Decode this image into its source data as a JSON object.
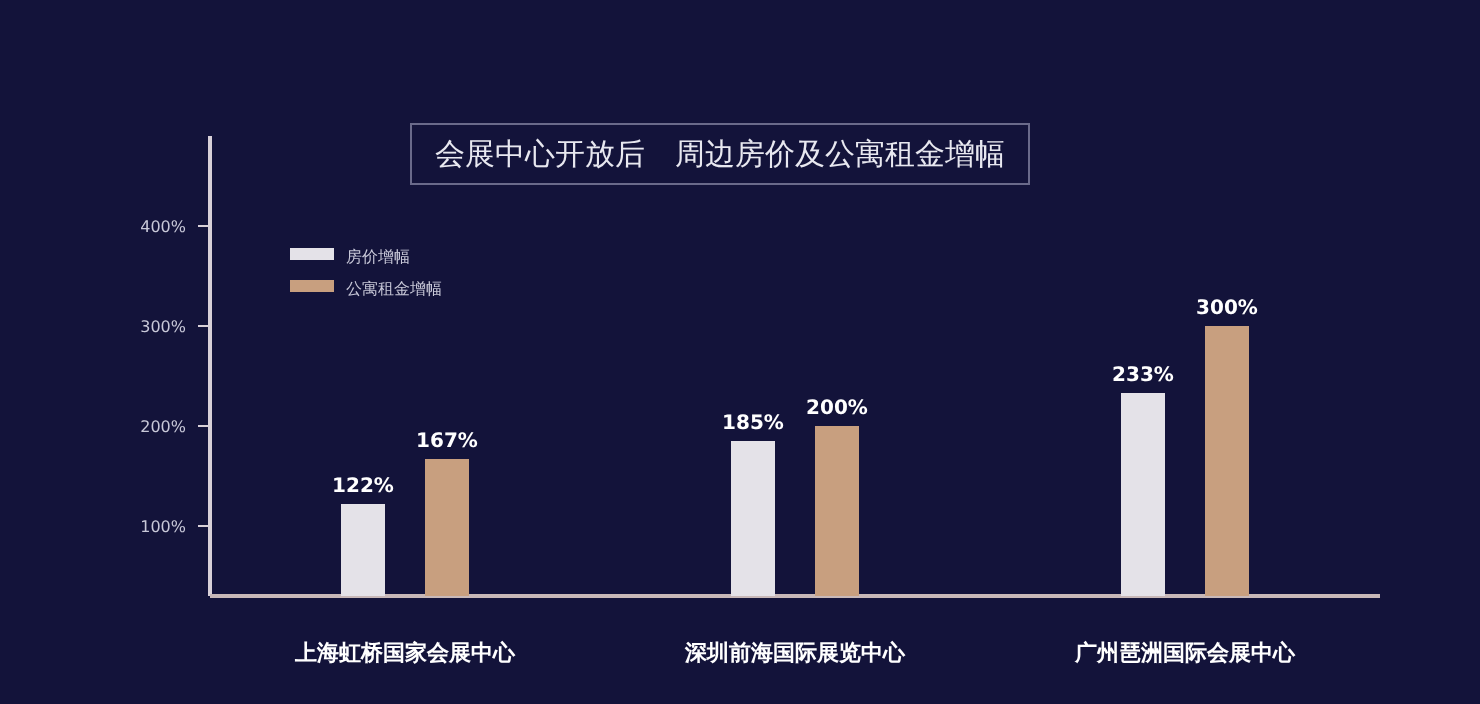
{
  "chart_data": {
    "type": "bar",
    "title": "会展中心开放后　周边房价及公寓租金增幅",
    "categories": [
      "上海虹桥国家会展中心",
      "深圳前海国际展览中心",
      "广州琶洲国际会展中心"
    ],
    "series": [
      {
        "name": "房价增幅",
        "color": "#e4e2e8",
        "values": [
          122,
          185,
          233
        ],
        "value_labels": [
          "122%",
          "185%",
          "233%"
        ]
      },
      {
        "name": "公寓租金增幅",
        "color": "#c89f7f",
        "values": [
          167,
          200,
          300
        ],
        "value_labels": [
          "167%",
          "200%",
          "300%"
        ]
      }
    ],
    "ylim": [
      30,
      490
    ],
    "yticks": [
      {
        "value": 100,
        "label": "100%"
      },
      {
        "value": 200,
        "label": "200%"
      },
      {
        "value": 300,
        "label": "300%"
      },
      {
        "value": 400,
        "label": "400%"
      }
    ],
    "legend": "top left",
    "grid": false
  }
}
